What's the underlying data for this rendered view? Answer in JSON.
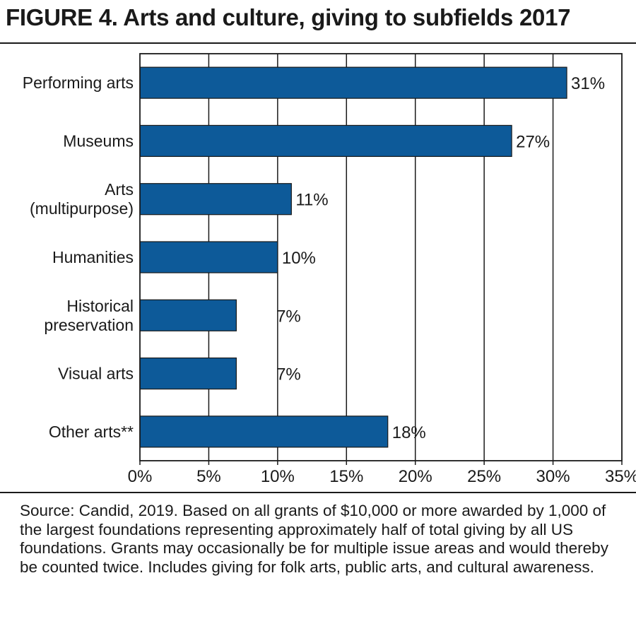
{
  "chart_data": {
    "type": "bar",
    "orientation": "horizontal",
    "title": "FIGURE 4. Arts and culture, giving to subfields 2017",
    "categories": [
      [
        "Performing arts"
      ],
      [
        "Museums"
      ],
      [
        "Arts",
        "(multipurpose)"
      ],
      [
        "Humanities"
      ],
      [
        "Historical",
        "preservation"
      ],
      [
        "Visual arts"
      ],
      [
        "Other arts**"
      ]
    ],
    "values": [
      31,
      27,
      11,
      10,
      7,
      7,
      18
    ],
    "value_labels": [
      "31%",
      "27%",
      "11%",
      "10%",
      "7%",
      "7%",
      "18%"
    ],
    "xlim": [
      0,
      35
    ],
    "x_ticks": [
      0,
      5,
      10,
      15,
      20,
      25,
      30,
      35
    ],
    "x_tick_labels": [
      "0%",
      "5%",
      "10%",
      "15%",
      "20%",
      "25%",
      "30%",
      "35%"
    ],
    "xlabel": "",
    "ylabel": "",
    "grid": "vertical",
    "bar_color": "#0d5a99"
  },
  "source_note": "Source: Candid, 2019. Based on all grants of $10,000 or more awarded by 1,000 of the largest foundations representing approximately half of total giving by all US foundations. Grants may occasionally be for multiple issue areas and would thereby be counted twice. Includes giving for folk arts, public arts, and cultural awareness."
}
